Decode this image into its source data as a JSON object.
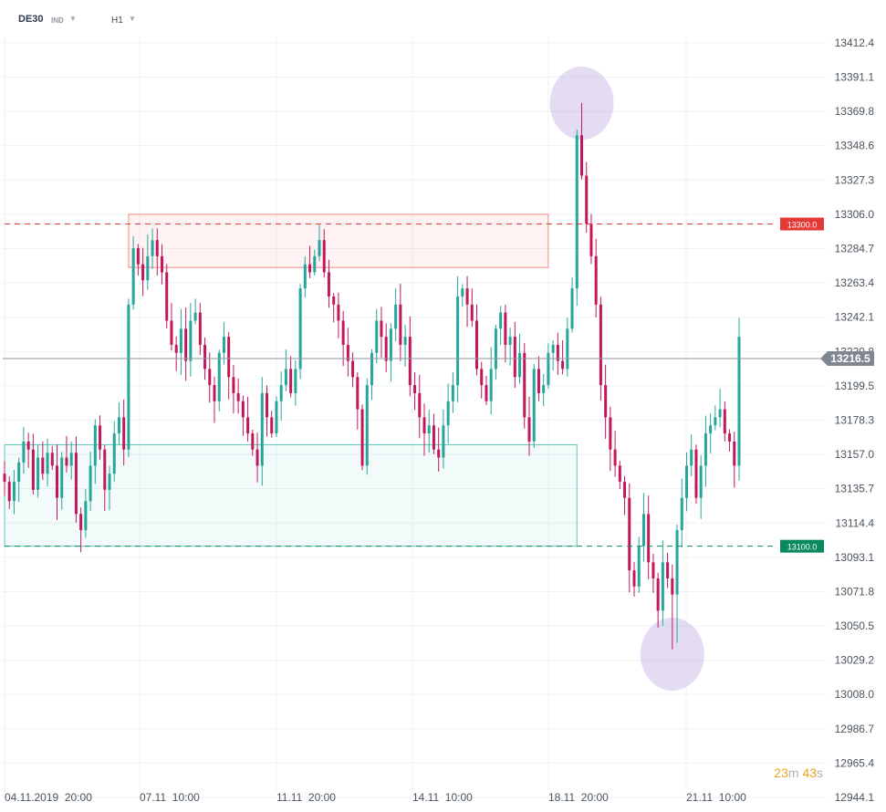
{
  "header": {
    "symbol": "DE30",
    "instrument_type": "IND",
    "timeframe": "H1",
    "dropdown_icon": "chevron-down-icon"
  },
  "timer": {
    "minutes": "23",
    "m": "m",
    "seconds": "43",
    "s": "s"
  },
  "chart_data": {
    "type": "candlestick",
    "y_ticks": [
      "13412.4",
      "13391.1",
      "13369.8",
      "13348.6",
      "13327.3",
      "13306.0",
      "13284.7",
      "13263.4",
      "13242.1",
      "13220.8",
      "13199.5",
      "13178.3",
      "13157.0",
      "13135.7",
      "13114.4",
      "13093.1",
      "13071.8",
      "13050.5",
      "13029.2",
      "13008.0",
      "12986.7",
      "12965.4",
      "12944.1"
    ],
    "x_ticks": [
      "04.11.2019  20:00",
      "07.11  10:00",
      "11.11  20:00",
      "14.11  10:00",
      "18.11  20:00",
      "21.11  10:00"
    ],
    "ylim": [
      12944.1,
      13412.4
    ],
    "current_price": "13216.5",
    "levels": [
      {
        "value": 13300.0,
        "label": "13300.0",
        "color": "#e53935"
      },
      {
        "value": 13100.0,
        "label": "13100.0",
        "color": "#0a8a5c"
      }
    ],
    "zones": [
      {
        "kind": "resistance",
        "from_index": 26,
        "to_index": 114,
        "low": 13273,
        "high": 13306,
        "color": "#f28b82"
      },
      {
        "kind": "support",
        "from_index": 0,
        "to_index": 120,
        "low": 13100,
        "high": 13163,
        "color": "#5ec8b8"
      }
    ],
    "highlights": [
      {
        "index": 121,
        "price": 13375
      },
      {
        "index": 140,
        "price": 13033
      }
    ],
    "up_color": "#26a69a",
    "down_color": "#c2185b",
    "closes": [
      13140,
      13128,
      13140,
      13152,
      13165,
      13160,
      13135,
      13155,
      13145,
      13158,
      13150,
      13130,
      13155,
      13150,
      13158,
      13120,
      13110,
      13128,
      13150,
      13175,
      13160,
      13135,
      13145,
      13170,
      13180,
      13160,
      13250,
      13285,
      13275,
      13265,
      13280,
      13290,
      13280,
      13270,
      13240,
      13225,
      13220,
      13235,
      13215,
      13240,
      13245,
      13225,
      13210,
      13200,
      13190,
      13220,
      13230,
      13205,
      13195,
      13190,
      13180,
      13170,
      13160,
      13150,
      13195,
      13180,
      13170,
      13190,
      13200,
      13210,
      13195,
      13210,
      13260,
      13275,
      13270,
      13280,
      13290,
      13270,
      13255,
      13250,
      13240,
      13225,
      13215,
      13205,
      13185,
      13150,
      13200,
      13220,
      13240,
      13230,
      13215,
      13235,
      13250,
      13225,
      13230,
      13200,
      13195,
      13180,
      13170,
      13175,
      13160,
      13155,
      13175,
      13190,
      13200,
      13255,
      13260,
      13250,
      13240,
      13210,
      13200,
      13190,
      13210,
      13235,
      13245,
      13225,
      13230,
      13205,
      13220,
      13180,
      13165,
      13210,
      13195,
      13200,
      13220,
      13225,
      13215,
      13210,
      13235,
      13260,
      13355,
      13330,
      13300,
      13280,
      13250,
      13200,
      13180,
      13160,
      13150,
      13140,
      13130,
      13085,
      13075,
      13100,
      13120,
      13090,
      13080,
      13060,
      13090,
      13080,
      13070,
      13110,
      13130,
      13150,
      13160,
      13130,
      13150,
      13170,
      13175,
      13180,
      13185,
      13170,
      13165,
      13150,
      13230
    ]
  }
}
